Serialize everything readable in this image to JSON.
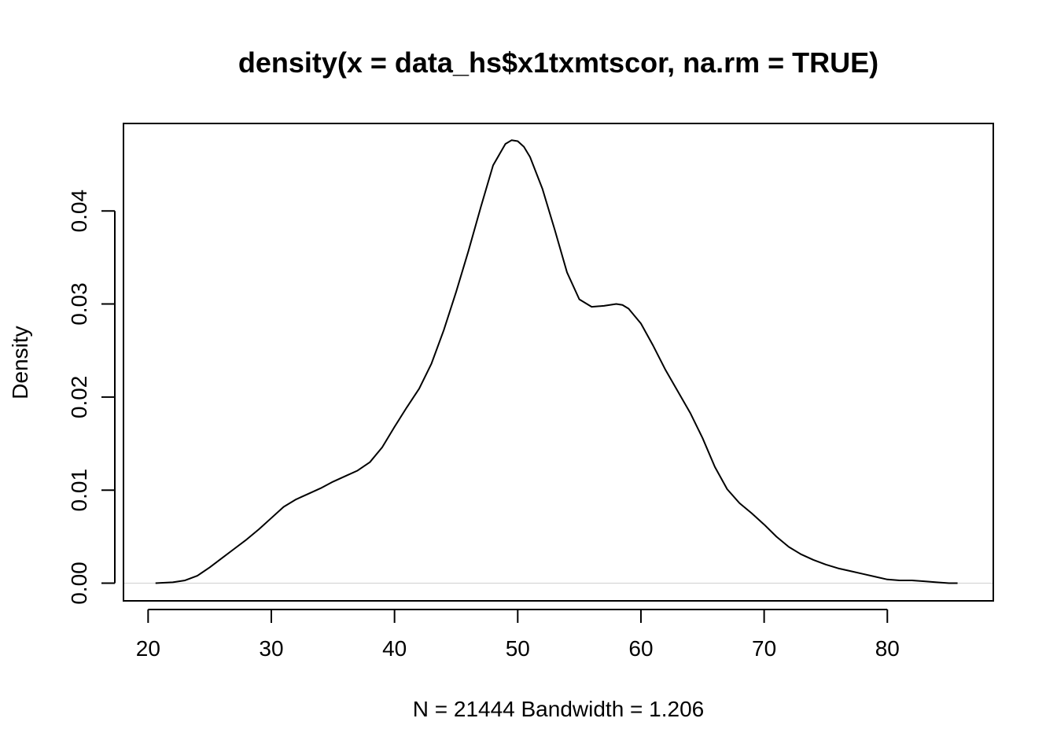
{
  "chart_data": {
    "type": "line",
    "title": "density(x = data_hs$x1txmtscor, na.rm = TRUE)",
    "xlabel": "N = 21444   Bandwidth = 1.206",
    "ylabel": "Density",
    "xlim": [
      18.0,
      88.6
    ],
    "ylim": [
      -0.0019,
      0.0494
    ],
    "x_ticks": [
      {
        "value": 20,
        "label": "20"
      },
      {
        "value": 30,
        "label": "30"
      },
      {
        "value": 40,
        "label": "40"
      },
      {
        "value": 50,
        "label": "50"
      },
      {
        "value": 60,
        "label": "60"
      },
      {
        "value": 70,
        "label": "70"
      },
      {
        "value": 80,
        "label": "80"
      }
    ],
    "y_ticks": [
      {
        "value": 0.0,
        "label": "0.00"
      },
      {
        "value": 0.01,
        "label": "0.01"
      },
      {
        "value": 0.02,
        "label": "0.02"
      },
      {
        "value": 0.03,
        "label": "0.03"
      },
      {
        "value": 0.04,
        "label": "0.04"
      }
    ],
    "zero_line": true,
    "grid": false,
    "series": [
      {
        "color": "#000000",
        "x": [
          20.6,
          22.0,
          23.0,
          24.0,
          25.0,
          26.0,
          27.0,
          28.0,
          29.0,
          30.0,
          31.0,
          32.0,
          33.0,
          34.0,
          35.0,
          36.0,
          37.0,
          38.0,
          39.0,
          40.0,
          41.0,
          42.0,
          43.0,
          44.0,
          45.0,
          46.0,
          47.0,
          48.0,
          49.0,
          49.5,
          50.0,
          50.5,
          51.0,
          52.0,
          53.0,
          54.0,
          55.0,
          56.0,
          57.0,
          58.0,
          58.5,
          59.0,
          60.0,
          61.0,
          62.0,
          63.0,
          64.0,
          65.0,
          66.0,
          67.0,
          68.0,
          69.0,
          70.0,
          71.0,
          72.0,
          73.0,
          74.0,
          75.0,
          76.0,
          77.0,
          78.0,
          79.0,
          80.0,
          81.0,
          82.0,
          83.0,
          84.0,
          85.0,
          85.7
        ],
        "y": [
          0.0,
          0.0001,
          0.0003,
          0.0008,
          0.0017,
          0.0027,
          0.0037,
          0.0047,
          0.0058,
          0.007,
          0.0082,
          0.009,
          0.0096,
          0.0102,
          0.0109,
          0.0115,
          0.0121,
          0.013,
          0.0146,
          0.0168,
          0.0189,
          0.0209,
          0.0236,
          0.0272,
          0.0313,
          0.0357,
          0.0404,
          0.0449,
          0.0472,
          0.0476,
          0.0475,
          0.0469,
          0.0458,
          0.0424,
          0.038,
          0.0334,
          0.0305,
          0.0297,
          0.0298,
          0.03,
          0.0299,
          0.0295,
          0.0279,
          0.0255,
          0.0229,
          0.0206,
          0.0183,
          0.0156,
          0.0125,
          0.0101,
          0.0086,
          0.0075,
          0.0063,
          0.005,
          0.0039,
          0.0031,
          0.0025,
          0.002,
          0.0016,
          0.0013,
          0.001,
          0.0007,
          0.0004,
          0.0003,
          0.0003,
          0.0002,
          0.0001,
          0.0,
          0.0
        ]
      }
    ]
  }
}
